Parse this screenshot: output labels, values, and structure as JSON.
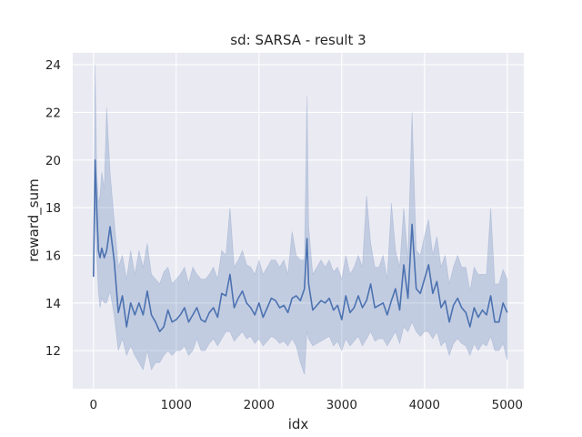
{
  "chart_data": {
    "type": "line",
    "title": "sd: SARSA - result 3",
    "xlabel": "idx",
    "ylabel": "reward_sum",
    "xlim": [
      -250,
      5200
    ],
    "ylim": [
      10.4,
      24.5
    ],
    "x_ticks": [
      0,
      1000,
      2000,
      3000,
      4000,
      5000
    ],
    "y_ticks": [
      12,
      14,
      16,
      18,
      20,
      22,
      24
    ],
    "grid": true,
    "legend": "none",
    "colors": {
      "background": "#EAEAF2",
      "grid": "#FFFFFF",
      "line": "#4C72B0",
      "band": "#4C72B0"
    },
    "series": [
      {
        "x": [
          0,
          20,
          40,
          60,
          80,
          100,
          130,
          160,
          200,
          250,
          300,
          350,
          400,
          450,
          500,
          550,
          600,
          650,
          700,
          750,
          800,
          850,
          900,
          950,
          1000,
          1050,
          1100,
          1150,
          1200,
          1250,
          1300,
          1350,
          1400,
          1450,
          1500,
          1550,
          1600,
          1650,
          1700,
          1750,
          1800,
          1850,
          1900,
          1950,
          2000,
          2050,
          2100,
          2150,
          2200,
          2250,
          2300,
          2350,
          2400,
          2450,
          2500,
          2550,
          2580,
          2600,
          2650,
          2700,
          2750,
          2800,
          2850,
          2900,
          2950,
          3000,
          3050,
          3100,
          3150,
          3200,
          3250,
          3300,
          3350,
          3400,
          3450,
          3500,
          3550,
          3600,
          3650,
          3700,
          3750,
          3800,
          3850,
          3900,
          3950,
          4000,
          4050,
          4100,
          4150,
          4200,
          4250,
          4300,
          4350,
          4400,
          4450,
          4500,
          4550,
          4600,
          4650,
          4700,
          4750,
          4800,
          4850,
          4900,
          4950,
          5000
        ],
        "y": [
          15.1,
          20.0,
          18.0,
          16.2,
          15.9,
          16.3,
          15.9,
          16.2,
          17.2,
          15.8,
          13.6,
          14.3,
          13.0,
          14.0,
          13.5,
          14.0,
          13.5,
          14.5,
          13.5,
          13.2,
          12.8,
          13.0,
          13.7,
          13.2,
          13.3,
          13.5,
          13.8,
          13.2,
          13.5,
          13.8,
          13.3,
          13.2,
          13.6,
          13.8,
          13.4,
          14.4,
          14.3,
          15.2,
          13.8,
          14.2,
          14.5,
          14.0,
          13.8,
          13.5,
          14.0,
          13.4,
          13.8,
          14.2,
          14.1,
          13.8,
          13.9,
          13.6,
          14.2,
          14.3,
          14.1,
          14.6,
          16.7,
          14.8,
          13.7,
          13.9,
          14.1,
          14.0,
          14.2,
          13.7,
          13.9,
          13.3,
          14.3,
          13.6,
          13.8,
          14.3,
          13.8,
          14.1,
          14.8,
          13.8,
          13.9,
          14.0,
          13.5,
          14.1,
          14.6,
          13.7,
          15.6,
          14.2,
          17.3,
          14.6,
          14.4,
          15.0,
          15.6,
          14.4,
          14.9,
          13.8,
          14.1,
          13.2,
          13.9,
          14.2,
          13.8,
          13.6,
          13.0,
          13.8,
          13.4,
          13.7,
          13.5,
          14.3,
          13.2,
          13.2,
          14.0,
          13.6
        ],
        "lower": [
          15.1,
          18.0,
          16.0,
          14.5,
          13.8,
          14.2,
          14.0,
          14.0,
          14.5,
          13.5,
          12.0,
          12.5,
          11.8,
          12.2,
          11.8,
          11.5,
          11.2,
          12.0,
          11.2,
          11.5,
          11.5,
          11.8,
          12.0,
          11.8,
          12.0,
          12.0,
          12.2,
          11.8,
          12.0,
          12.5,
          12.0,
          12.0,
          12.3,
          12.5,
          12.2,
          12.5,
          12.8,
          12.8,
          12.4,
          12.6,
          12.8,
          12.5,
          12.6,
          12.3,
          12.5,
          12.2,
          12.4,
          12.6,
          12.5,
          12.3,
          12.4,
          12.2,
          12.5,
          12.2,
          11.5,
          11.0,
          12.8,
          12.5,
          12.2,
          12.3,
          12.4,
          12.5,
          12.6,
          12.2,
          12.4,
          12.0,
          12.5,
          12.2,
          12.4,
          12.6,
          12.2,
          12.5,
          12.8,
          12.4,
          12.5,
          12.5,
          12.2,
          12.5,
          12.8,
          12.3,
          13.0,
          12.8,
          13.2,
          12.8,
          12.6,
          12.8,
          12.8,
          12.5,
          12.8,
          12.2,
          12.4,
          11.8,
          12.3,
          12.5,
          12.3,
          12.2,
          11.8,
          12.3,
          12.0,
          12.3,
          12.2,
          12.6,
          12.0,
          12.0,
          12.3,
          11.6
        ],
        "upper": [
          15.1,
          24.0,
          19.5,
          18.2,
          18.5,
          19.5,
          18.8,
          22.2,
          19.5,
          17.5,
          15.5,
          16.0,
          15.0,
          16.2,
          15.2,
          16.2,
          15.5,
          16.5,
          15.2,
          15.0,
          14.8,
          15.3,
          15.5,
          14.8,
          15.0,
          15.2,
          15.5,
          14.8,
          15.5,
          15.2,
          15.0,
          15.0,
          15.2,
          15.5,
          15.0,
          16.2,
          16.0,
          18.0,
          15.5,
          15.8,
          16.2,
          15.6,
          15.5,
          15.2,
          15.8,
          15.2,
          15.5,
          15.8,
          15.8,
          15.5,
          15.8,
          15.2,
          17.0,
          16.0,
          15.8,
          15.8,
          22.7,
          17.2,
          15.2,
          15.5,
          15.8,
          15.5,
          15.8,
          15.3,
          15.5,
          15.0,
          16.0,
          15.2,
          15.5,
          16.0,
          15.5,
          18.5,
          16.5,
          15.5,
          15.5,
          16.0,
          15.0,
          18.2,
          16.2,
          15.5,
          18.0,
          15.8,
          22.0,
          16.2,
          16.0,
          16.8,
          17.5,
          16.0,
          16.8,
          15.5,
          16.0,
          14.8,
          15.5,
          16.0,
          15.5,
          15.5,
          14.5,
          15.5,
          15.2,
          15.2,
          15.2,
          18.0,
          14.8,
          14.8,
          15.4,
          15.0
        ]
      }
    ]
  }
}
